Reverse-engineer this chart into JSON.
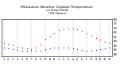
{
  "title": "Milwaukee Weather Outdoor Temperature\nvs Dew Point\n(24 Hours)",
  "title_fontsize": 3.2,
  "background_color": "#ffffff",
  "grid_color": "#888888",
  "temp_color": "#cc0000",
  "dew_color": "#0000cc",
  "black_color": "#000000",
  "ylim": [
    24,
    84
  ],
  "yticks": [
    28,
    35,
    42,
    49,
    56,
    63,
    70,
    77,
    84
  ],
  "ytick_labels": [
    "28",
    "35",
    "42",
    "49",
    "56",
    "63",
    "70",
    "77",
    "84"
  ],
  "ylabel_fontsize": 2.8,
  "xlabel_fontsize": 2.5,
  "x_labels": [
    "1",
    "2",
    "3",
    "4",
    "5",
    "6",
    "7",
    "8",
    "9",
    "10",
    "11",
    "12",
    "1",
    "2",
    "3",
    "4",
    "5",
    "6",
    "7",
    "8",
    "9",
    "10",
    "11",
    "12"
  ],
  "x_values": [
    0,
    1,
    2,
    3,
    4,
    5,
    6,
    7,
    8,
    9,
    10,
    11,
    12,
    13,
    14,
    15,
    16,
    17,
    18,
    19,
    20,
    21,
    22,
    23
  ],
  "temp_values": [
    46,
    44,
    42,
    40,
    38,
    37,
    36,
    38,
    44,
    52,
    57,
    62,
    66,
    68,
    69,
    69,
    68,
    65,
    62,
    58,
    54,
    51,
    48,
    46
  ],
  "dew_values": [
    38,
    37,
    36,
    35,
    34,
    33,
    33,
    33,
    34,
    36,
    37,
    38,
    39,
    39,
    38,
    37,
    36,
    35,
    34,
    34,
    35,
    36,
    37,
    38
  ],
  "vgrid_positions": [
    0,
    3,
    6,
    9,
    12,
    15,
    18,
    21,
    23
  ],
  "marker_size": 0.8,
  "dot_size": 0.6
}
